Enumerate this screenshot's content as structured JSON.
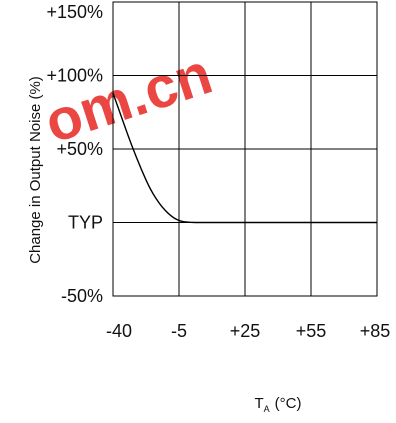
{
  "watermark": {
    "text": "om.cn",
    "color": "#e8322e"
  },
  "chart_data": {
    "type": "line",
    "title": "",
    "ylabel": "Change in Output Noise (%)",
    "xlabel_main": "T",
    "xlabel_sub": "A",
    "xlabel_unit": "(°C)",
    "x_ticks": [
      "-40",
      "-5",
      "+25",
      "+55",
      "+85"
    ],
    "y_ticks": [
      "+150%",
      "+100%",
      "+50%",
      "TYP",
      "-50%"
    ],
    "x_tick_values": [
      -40,
      -5,
      25,
      55,
      85
    ],
    "y_tick_values": [
      150,
      100,
      50,
      0,
      -50
    ],
    "xlim": [
      -40,
      85
    ],
    "ylim": [
      -50,
      150
    ],
    "grid": true,
    "series": [
      {
        "x": [
          -40,
          -35,
          -30,
          -25,
          -20,
          -15,
          -10,
          -5,
          0,
          5,
          10,
          25,
          55,
          85
        ],
        "y": [
          88,
          70,
          52,
          36,
          22,
          12,
          5,
          1,
          0,
          0,
          0,
          0,
          0,
          0
        ]
      }
    ],
    "line_color": "#000000",
    "grid_color": "#000000"
  }
}
